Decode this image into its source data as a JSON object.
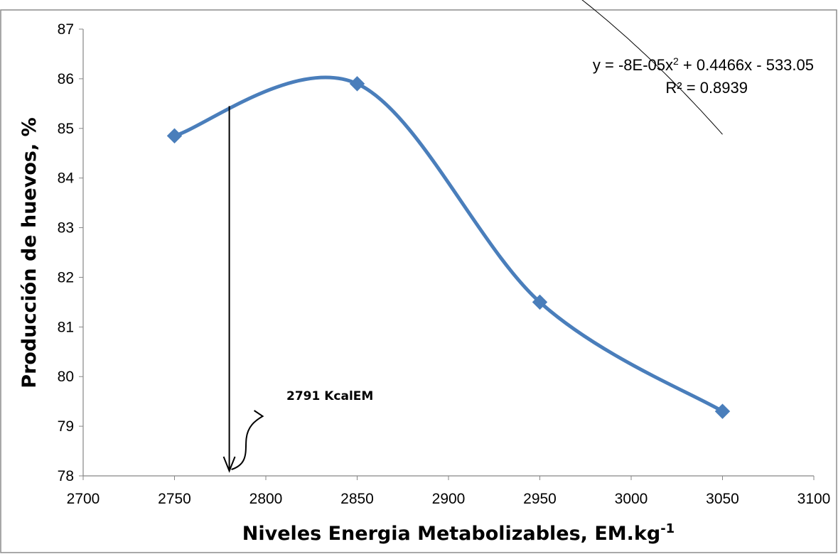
{
  "chart_data": {
    "type": "line",
    "title": "",
    "xlabel": "Niveles Energia Metabolizables, EM.kg",
    "xlabel_superscript": "-1",
    "ylabel": "Producción de huevos, %",
    "xlim": [
      2700,
      3100
    ],
    "ylim": [
      78,
      87
    ],
    "x_ticks": [
      "2700",
      "2750",
      "2800",
      "2850",
      "2900",
      "2950",
      "3000",
      "3050",
      "3100"
    ],
    "y_ticks": [
      "78",
      "79",
      "80",
      "81",
      "82",
      "83",
      "84",
      "85",
      "86",
      "87"
    ],
    "grid": false,
    "legend": "none",
    "series": [
      {
        "x": [
          2750,
          2850,
          2950,
          3050
        ],
        "y": [
          84.85,
          85.9,
          81.5,
          79.3
        ],
        "color": "#4a7ebb",
        "marker": "diamond",
        "line": "smooth"
      }
    ],
    "trendline": {
      "kind": "polynomial",
      "order": 2,
      "coefficients": {
        "a": -8e-05,
        "b": 0.4466,
        "c": -533.05
      },
      "x_range": [
        2750,
        3050
      ],
      "color": "#000000",
      "equation_label": "y = -8E-05x",
      "equation_exp": "2",
      "equation_rest": " + 0.4466x - 533.05",
      "r2_label": "R² = 0.8939"
    },
    "annotation": {
      "text": "2791 KcalEM",
      "arrow_x": 2780,
      "arrow_y_from": 85.45,
      "arrow_y_to": 78.1
    }
  }
}
